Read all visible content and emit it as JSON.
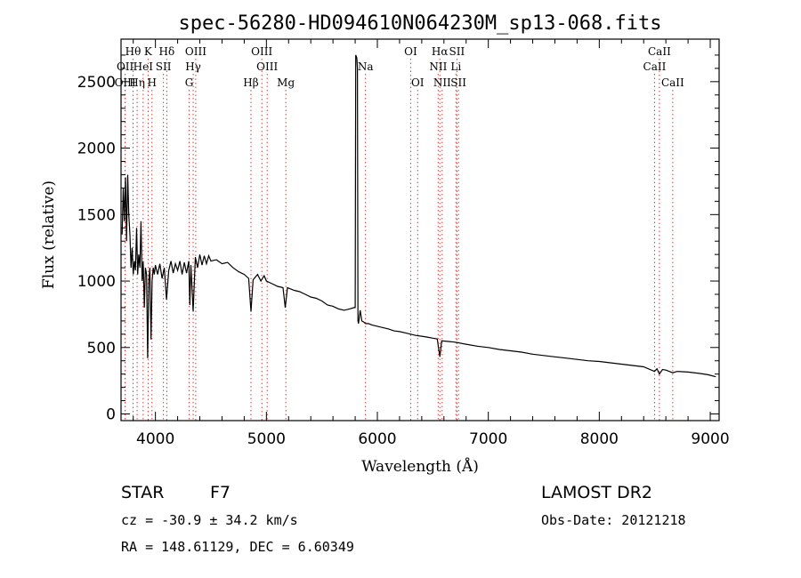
{
  "chart_data": {
    "type": "line",
    "title": "spec-56280-HD094610N064230M_sp13-068.fits",
    "xlabel": "Wavelength (Å)",
    "ylabel": "Flux (relative)",
    "xlim": [
      3690,
      9080
    ],
    "ylim": [
      -50,
      2820
    ],
    "x_ticks": [
      4000,
      5000,
      6000,
      7000,
      8000,
      9000
    ],
    "y_ticks": [
      0,
      500,
      1000,
      1500,
      2000,
      2500
    ],
    "series": [
      {
        "values": [
          [
            3700,
            1350
          ],
          [
            3710,
            1700
          ],
          [
            3720,
            1450
          ],
          [
            3730,
            1780
          ],
          [
            3740,
            1300
          ],
          [
            3750,
            1800
          ],
          [
            3760,
            1500
          ],
          [
            3770,
            1350
          ],
          [
            3780,
            1100
          ],
          [
            3790,
            1250
          ],
          [
            3800,
            1050
          ],
          [
            3810,
            1150
          ],
          [
            3820,
            1080
          ],
          [
            3830,
            1400
          ],
          [
            3840,
            1050
          ],
          [
            3850,
            1200
          ],
          [
            3860,
            1100
          ],
          [
            3870,
            1450
          ],
          [
            3880,
            1000
          ],
          [
            3890,
            1150
          ],
          [
            3900,
            800
          ],
          [
            3910,
            1100
          ],
          [
            3920,
            1050
          ],
          [
            3930,
            420
          ],
          [
            3940,
            1000
          ],
          [
            3950,
            1100
          ],
          [
            3960,
            560
          ],
          [
            3970,
            1000
          ],
          [
            3980,
            1100
          ],
          [
            3990,
            1050
          ],
          [
            4000,
            1120
          ],
          [
            4020,
            1050
          ],
          [
            4040,
            1130
          ],
          [
            4060,
            1020
          ],
          [
            4080,
            1100
          ],
          [
            4100,
            860
          ],
          [
            4120,
            1080
          ],
          [
            4140,
            1150
          ],
          [
            4160,
            1060
          ],
          [
            4180,
            1130
          ],
          [
            4200,
            1080
          ],
          [
            4220,
            1150
          ],
          [
            4240,
            1050
          ],
          [
            4260,
            1140
          ],
          [
            4280,
            1060
          ],
          [
            4300,
            1150
          ],
          [
            4310,
            820
          ],
          [
            4320,
            1120
          ],
          [
            4340,
            770
          ],
          [
            4360,
            1180
          ],
          [
            4380,
            1100
          ],
          [
            4400,
            1200
          ],
          [
            4420,
            1120
          ],
          [
            4440,
            1190
          ],
          [
            4460,
            1130
          ],
          [
            4480,
            1190
          ],
          [
            4500,
            1150
          ],
          [
            4550,
            1160
          ],
          [
            4600,
            1130
          ],
          [
            4650,
            1140
          ],
          [
            4700,
            1100
          ],
          [
            4750,
            1070
          ],
          [
            4800,
            1050
          ],
          [
            4840,
            1020
          ],
          [
            4861,
            770
          ],
          [
            4880,
            1010
          ],
          [
            4920,
            1050
          ],
          [
            4950,
            1000
          ],
          [
            4980,
            1040
          ],
          [
            5000,
            1000
          ],
          [
            5050,
            980
          ],
          [
            5100,
            960
          ],
          [
            5150,
            950
          ],
          [
            5170,
            800
          ],
          [
            5190,
            950
          ],
          [
            5250,
            930
          ],
          [
            5300,
            920
          ],
          [
            5350,
            900
          ],
          [
            5400,
            880
          ],
          [
            5450,
            870
          ],
          [
            5500,
            850
          ],
          [
            5550,
            820
          ],
          [
            5600,
            810
          ],
          [
            5650,
            790
          ],
          [
            5700,
            780
          ],
          [
            5750,
            790
          ],
          [
            5790,
            800
          ],
          [
            5800,
            800
          ],
          [
            5805,
            2700
          ],
          [
            5815,
            2680
          ],
          [
            5820,
            2600
          ],
          [
            5825,
            700
          ],
          [
            5830,
            680
          ],
          [
            5845,
            780
          ],
          [
            5860,
            700
          ],
          [
            5880,
            690
          ],
          [
            5893,
            680
          ],
          [
            5920,
            680
          ],
          [
            5950,
            670
          ],
          [
            6000,
            660
          ],
          [
            6050,
            650
          ],
          [
            6100,
            640
          ],
          [
            6150,
            625
          ],
          [
            6200,
            620
          ],
          [
            6250,
            610
          ],
          [
            6300,
            600
          ],
          [
            6350,
            590
          ],
          [
            6400,
            585
          ],
          [
            6450,
            578
          ],
          [
            6500,
            570
          ],
          [
            6540,
            565
          ],
          [
            6563,
            430
          ],
          [
            6580,
            550
          ],
          [
            6650,
            545
          ],
          [
            6700,
            540
          ],
          [
            6800,
            525
          ],
          [
            6900,
            510
          ],
          [
            7000,
            500
          ],
          [
            7100,
            485
          ],
          [
            7200,
            475
          ],
          [
            7300,
            465
          ],
          [
            7400,
            450
          ],
          [
            7500,
            440
          ],
          [
            7600,
            430
          ],
          [
            7700,
            420
          ],
          [
            7800,
            410
          ],
          [
            7900,
            400
          ],
          [
            8000,
            395
          ],
          [
            8100,
            385
          ],
          [
            8200,
            375
          ],
          [
            8300,
            365
          ],
          [
            8400,
            355
          ],
          [
            8498,
            320
          ],
          [
            8520,
            340
          ],
          [
            8542,
            300
          ],
          [
            8570,
            335
          ],
          [
            8600,
            330
          ],
          [
            8662,
            310
          ],
          [
            8700,
            320
          ],
          [
            8800,
            315
          ],
          [
            8900,
            305
          ],
          [
            8980,
            295
          ],
          [
            9050,
            280
          ]
        ]
      }
    ],
    "lines": [
      {
        "label": "Hθ",
        "x": 3798,
        "row": 0
      },
      {
        "label": "K",
        "x": 3934,
        "row": 0
      },
      {
        "label": "Hδ",
        "x": 4102,
        "row": 0
      },
      {
        "label": "OIII",
        "x": 4363,
        "row": 0
      },
      {
        "label": "OIII",
        "x": 4959,
        "row": 0
      },
      {
        "label": "OI",
        "x": 6300,
        "row": 0
      },
      {
        "label": "Hα",
        "x": 6563,
        "row": 0
      },
      {
        "label": "SII",
        "x": 6717,
        "row": 0
      },
      {
        "label": "CaII",
        "x": 8542,
        "row": 0
      },
      {
        "label": "OII",
        "x": 3727,
        "row": 1
      },
      {
        "label": "HeI",
        "x": 3889,
        "row": 1
      },
      {
        "label": "SII",
        "x": 4072,
        "row": 1
      },
      {
        "label": "Hγ",
        "x": 4340,
        "row": 1
      },
      {
        "label": "OIII",
        "x": 5007,
        "row": 1
      },
      {
        "label": "Na",
        "x": 5893,
        "row": 1
      },
      {
        "label": "NII",
        "x": 6548,
        "row": 1
      },
      {
        "label": "Li",
        "x": 6708,
        "row": 1
      },
      {
        "label": "CaII",
        "x": 8498,
        "row": 1
      },
      {
        "label": "OIII",
        "x": 3727,
        "row": 2
      },
      {
        "label": "Hη",
        "x": 3835,
        "row": 2
      },
      {
        "label": "H",
        "x": 3969,
        "row": 2
      },
      {
        "label": "G",
        "x": 4304,
        "row": 2
      },
      {
        "label": "Hβ",
        "x": 4861,
        "row": 2
      },
      {
        "label": "Mg",
        "x": 5175,
        "row": 2
      },
      {
        "label": "OI",
        "x": 6363,
        "row": 2
      },
      {
        "label": "NII",
        "x": 6584,
        "row": 2
      },
      {
        "label": "SII",
        "x": 6731,
        "row": 2
      },
      {
        "label": "CaII",
        "x": 8662,
        "row": 2
      }
    ],
    "grid": false,
    "line_color": "#000000",
    "marker_color": "#d43c3c"
  },
  "info": {
    "object_class": "STAR",
    "subclass": "F7",
    "survey": "LAMOST DR2",
    "redshift": "cz = -30.9 ± 34.2 km/s",
    "obs_date": "Obs-Date: 20121218",
    "coords": "RA = 148.61129, DEC =   6.60349"
  }
}
